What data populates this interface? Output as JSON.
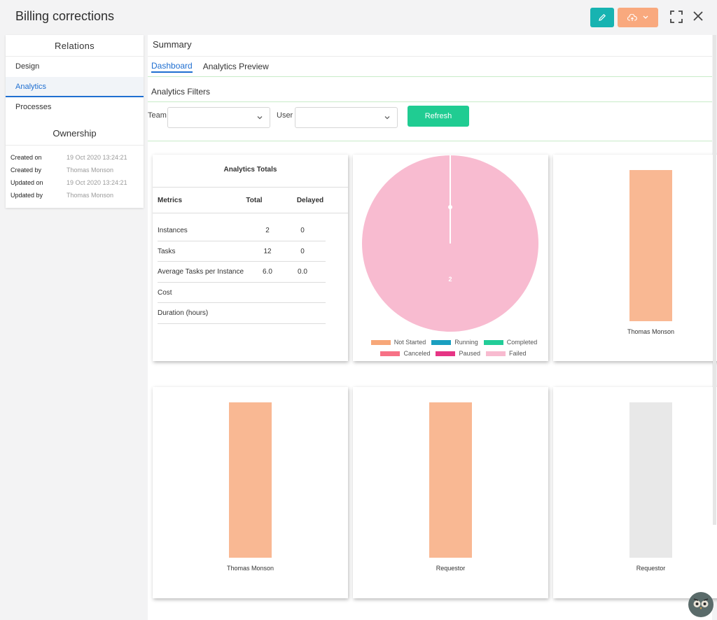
{
  "header": {
    "title": "Billing corrections"
  },
  "relations": {
    "heading": "Relations",
    "items": [
      {
        "label": "Design",
        "active": false
      },
      {
        "label": "Analytics",
        "active": true
      },
      {
        "label": "Processes",
        "active": false
      }
    ]
  },
  "ownership": {
    "heading": "Ownership",
    "rows": [
      {
        "key": "Created on",
        "value": "19 Oct 2020 13:24:21"
      },
      {
        "key": "Created by",
        "value": "Thomas Monson"
      },
      {
        "key": "Updated on",
        "value": "19 Oct 2020 13:24:21"
      },
      {
        "key": "Updated by",
        "value": "Thomas Monson"
      }
    ]
  },
  "main": {
    "summary": "Summary",
    "tabs": [
      {
        "label": "Dashboard",
        "active": true
      },
      {
        "label": "Analytics Preview",
        "active": false
      }
    ],
    "filters_title": "Analytics Filters",
    "filters": {
      "team_label": "Team",
      "team_value": "",
      "user_label": "User",
      "user_value": "",
      "refresh_label": "Refresh"
    }
  },
  "totals": {
    "title": "Analytics Totals",
    "columns": [
      "Metrics",
      "Total",
      "Delayed"
    ],
    "rows": [
      [
        "Instances",
        "2",
        "0"
      ],
      [
        "Tasks",
        "12",
        "0"
      ],
      [
        "Average Tasks per Instance",
        "6.0",
        "0.0"
      ],
      [
        "Cost",
        "",
        ""
      ],
      [
        "Duration (hours)",
        "",
        ""
      ]
    ]
  },
  "colors": {
    "accent_teal": "#17b3b1",
    "accent_orange": "#f9a97e",
    "refresh_green": "#20cc92",
    "link_blue": "#1f6fd1",
    "bar_orange": "#f9b893",
    "bar_grey": "#e8e8e8"
  },
  "chart_data": [
    {
      "type": "pie",
      "categories": [
        "Not Started",
        "Running",
        "Completed",
        "Canceled",
        "Paused",
        "Failed"
      ],
      "colors": [
        "#f7a779",
        "#1a9fc0",
        "#22cd98",
        "#f77186",
        "#e63585",
        "#f8bbd0"
      ],
      "values": [
        0,
        0,
        0,
        0,
        0,
        2
      ],
      "data_labels": [
        "2"
      ],
      "legend": "bottom"
    },
    {
      "type": "bar",
      "categories": [
        "Thomas Monson"
      ],
      "values": [
        1
      ],
      "color": "#f9b893"
    },
    {
      "type": "bar",
      "categories": [
        "Thomas Monson"
      ],
      "values": [
        1
      ],
      "color": "#f9b893"
    },
    {
      "type": "bar",
      "categories": [
        "Requestor"
      ],
      "values": [
        1
      ],
      "color": "#f9b893"
    },
    {
      "type": "bar",
      "categories": [
        "Requestor"
      ],
      "values": [
        1
      ],
      "color": "#e8e8e8"
    }
  ]
}
